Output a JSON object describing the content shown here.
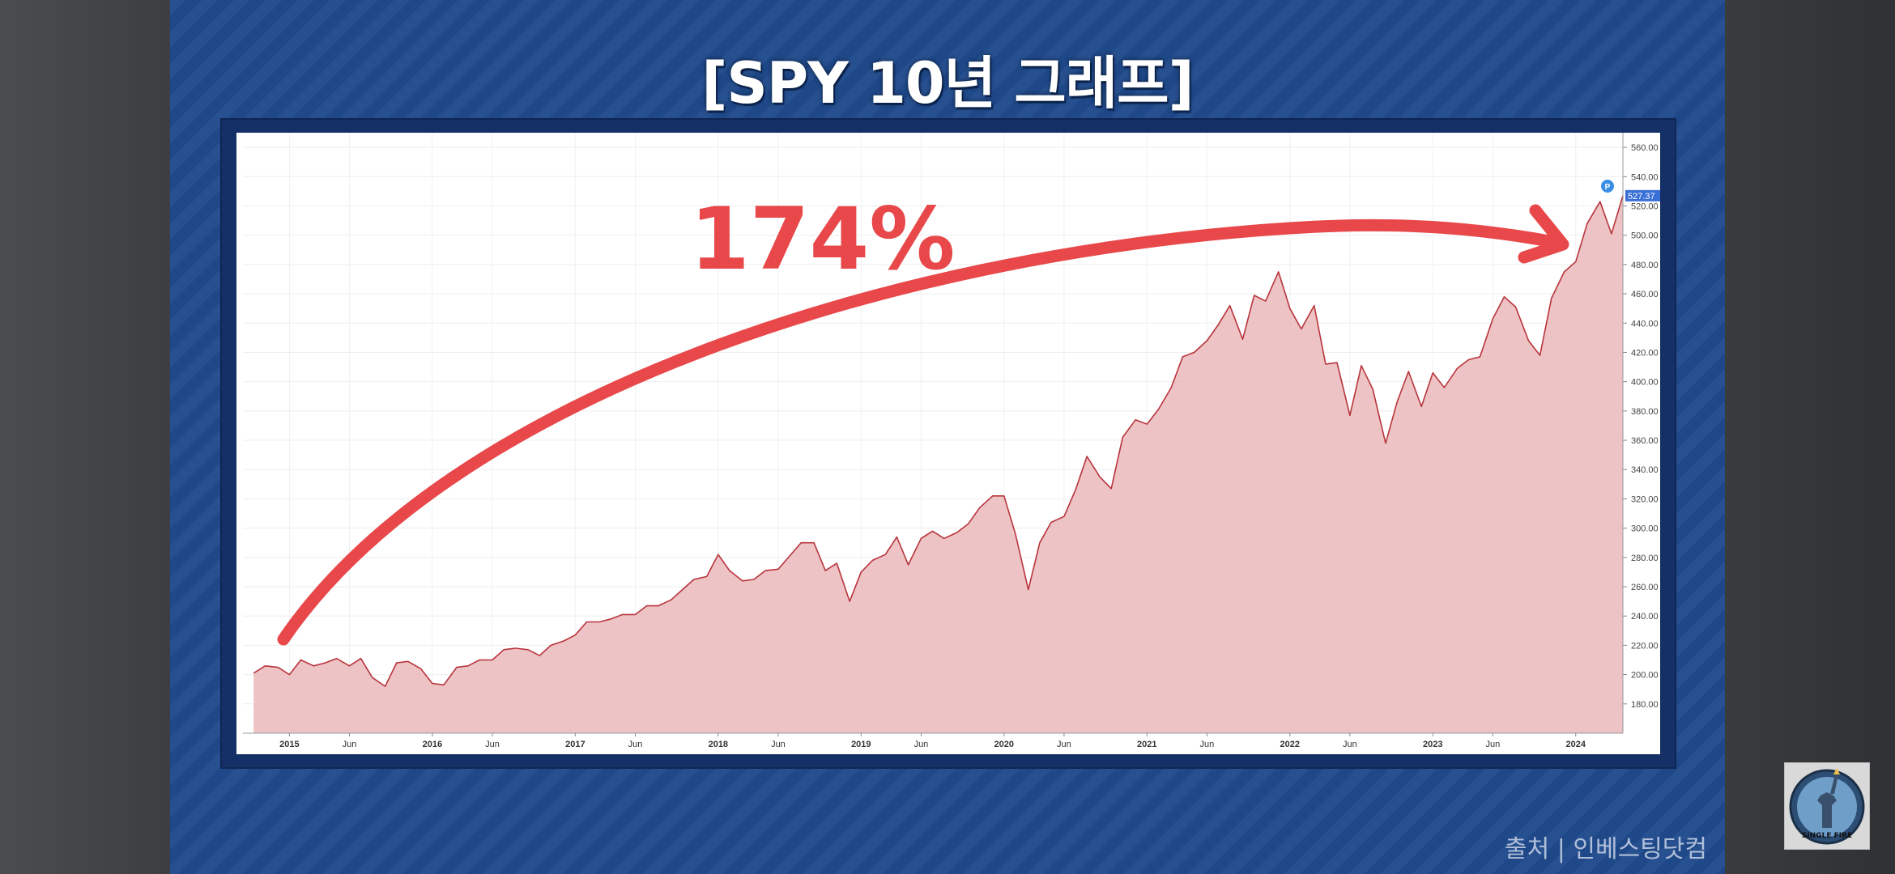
{
  "slide": {
    "title": "[SPY 10년 그래프]",
    "source": "출처 | 인베스팅닷컴",
    "logo_text": "SINGLE FIRE"
  },
  "colors": {
    "background": "#1f4a8c",
    "line": "#b8343c",
    "area": "#eab9bb",
    "arrow": "#e8484a",
    "last_label": "#3a6fd8"
  },
  "chart_data": {
    "type": "area",
    "title": "",
    "xlabel": "",
    "ylabel": "",
    "ylim": [
      160,
      570
    ],
    "grid": true,
    "y_ticks": [
      "560.00",
      "540.00",
      "520.00",
      "500.00",
      "480.00",
      "460.00",
      "440.00",
      "420.00",
      "400.00",
      "380.00",
      "360.00",
      "340.00",
      "320.00",
      "300.00",
      "280.00",
      "260.00",
      "240.00",
      "220.00",
      "200.00",
      "180.00"
    ],
    "x_ticks": [
      {
        "label": "2015",
        "t": 2015.0,
        "major": true
      },
      {
        "label": "Jun",
        "t": 2015.42,
        "major": false
      },
      {
        "label": "2016",
        "t": 2016.0,
        "major": true
      },
      {
        "label": "Jun",
        "t": 2016.42,
        "major": false
      },
      {
        "label": "2017",
        "t": 2017.0,
        "major": true
      },
      {
        "label": "Jun",
        "t": 2017.42,
        "major": false
      },
      {
        "label": "2018",
        "t": 2018.0,
        "major": true
      },
      {
        "label": "Jun",
        "t": 2018.42,
        "major": false
      },
      {
        "label": "2019",
        "t": 2019.0,
        "major": true
      },
      {
        "label": "Jun",
        "t": 2019.42,
        "major": false
      },
      {
        "label": "2020",
        "t": 2020.0,
        "major": true
      },
      {
        "label": "Jun",
        "t": 2020.42,
        "major": false
      },
      {
        "label": "2021",
        "t": 2021.0,
        "major": true
      },
      {
        "label": "Jun",
        "t": 2021.42,
        "major": false
      },
      {
        "label": "2022",
        "t": 2022.0,
        "major": true
      },
      {
        "label": "Jun",
        "t": 2022.42,
        "major": false
      },
      {
        "label": "2023",
        "t": 2023.0,
        "major": true
      },
      {
        "label": "Jun",
        "t": 2023.42,
        "major": false
      },
      {
        "label": "2024",
        "t": 2024.0,
        "major": true
      }
    ],
    "last_value_label": "527.37",
    "marker_label": "P",
    "annotation": "174%",
    "series": [
      {
        "values": [
          [
            2014.75,
            201
          ],
          [
            2014.83,
            206
          ],
          [
            2014.92,
            205
          ],
          [
            2015.0,
            200
          ],
          [
            2015.08,
            210
          ],
          [
            2015.17,
            206
          ],
          [
            2015.25,
            208
          ],
          [
            2015.33,
            211
          ],
          [
            2015.42,
            206
          ],
          [
            2015.5,
            211
          ],
          [
            2015.58,
            198
          ],
          [
            2015.67,
            192
          ],
          [
            2015.75,
            208
          ],
          [
            2015.83,
            209
          ],
          [
            2015.92,
            204
          ],
          [
            2016.0,
            194
          ],
          [
            2016.08,
            193
          ],
          [
            2016.17,
            205
          ],
          [
            2016.25,
            206
          ],
          [
            2016.33,
            210
          ],
          [
            2016.42,
            210
          ],
          [
            2016.5,
            217
          ],
          [
            2016.58,
            218
          ],
          [
            2016.67,
            217
          ],
          [
            2016.75,
            213
          ],
          [
            2016.83,
            220
          ],
          [
            2016.92,
            223
          ],
          [
            2017.0,
            227
          ],
          [
            2017.08,
            236
          ],
          [
            2017.17,
            236
          ],
          [
            2017.25,
            238
          ],
          [
            2017.33,
            241
          ],
          [
            2017.42,
            241
          ],
          [
            2017.5,
            247
          ],
          [
            2017.58,
            247
          ],
          [
            2017.67,
            251
          ],
          [
            2017.75,
            258
          ],
          [
            2017.83,
            265
          ],
          [
            2017.92,
            267
          ],
          [
            2018.0,
            282
          ],
          [
            2018.08,
            271
          ],
          [
            2018.17,
            264
          ],
          [
            2018.25,
            265
          ],
          [
            2018.33,
            271
          ],
          [
            2018.42,
            272
          ],
          [
            2018.5,
            281
          ],
          [
            2018.58,
            290
          ],
          [
            2018.67,
            290
          ],
          [
            2018.75,
            271
          ],
          [
            2018.83,
            276
          ],
          [
            2018.92,
            250
          ],
          [
            2019.0,
            270
          ],
          [
            2019.08,
            278
          ],
          [
            2019.17,
            282
          ],
          [
            2019.25,
            294
          ],
          [
            2019.33,
            275
          ],
          [
            2019.42,
            293
          ],
          [
            2019.5,
            298
          ],
          [
            2019.58,
            293
          ],
          [
            2019.67,
            297
          ],
          [
            2019.75,
            303
          ],
          [
            2019.83,
            314
          ],
          [
            2019.92,
            322
          ],
          [
            2020.0,
            322
          ],
          [
            2020.08,
            296
          ],
          [
            2020.17,
            258
          ],
          [
            2020.25,
            290
          ],
          [
            2020.33,
            304
          ],
          [
            2020.42,
            308
          ],
          [
            2020.5,
            326
          ],
          [
            2020.58,
            349
          ],
          [
            2020.67,
            335
          ],
          [
            2020.75,
            327
          ],
          [
            2020.83,
            362
          ],
          [
            2020.92,
            374
          ],
          [
            2021.0,
            371
          ],
          [
            2021.08,
            381
          ],
          [
            2021.17,
            396
          ],
          [
            2021.25,
            417
          ],
          [
            2021.33,
            420
          ],
          [
            2021.42,
            428
          ],
          [
            2021.5,
            439
          ],
          [
            2021.58,
            452
          ],
          [
            2021.67,
            429
          ],
          [
            2021.75,
            459
          ],
          [
            2021.83,
            455
          ],
          [
            2021.92,
            475
          ],
          [
            2022.0,
            450
          ],
          [
            2022.08,
            436
          ],
          [
            2022.17,
            452
          ],
          [
            2022.25,
            412
          ],
          [
            2022.33,
            413
          ],
          [
            2022.42,
            377
          ],
          [
            2022.5,
            411
          ],
          [
            2022.58,
            395
          ],
          [
            2022.67,
            358
          ],
          [
            2022.75,
            386
          ],
          [
            2022.83,
            407
          ],
          [
            2022.92,
            383
          ],
          [
            2023.0,
            406
          ],
          [
            2023.08,
            396
          ],
          [
            2023.17,
            409
          ],
          [
            2023.25,
            415
          ],
          [
            2023.33,
            417
          ],
          [
            2023.42,
            443
          ],
          [
            2023.5,
            458
          ],
          [
            2023.58,
            451
          ],
          [
            2023.67,
            428
          ],
          [
            2023.75,
            418
          ],
          [
            2023.83,
            457
          ],
          [
            2023.92,
            475
          ],
          [
            2024.0,
            482
          ],
          [
            2024.08,
            508
          ],
          [
            2024.17,
            523
          ],
          [
            2024.25,
            501
          ],
          [
            2024.33,
            527
          ]
        ]
      }
    ]
  }
}
